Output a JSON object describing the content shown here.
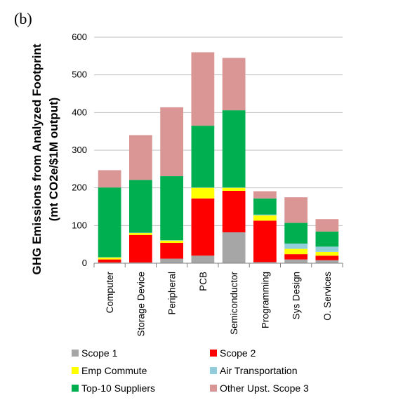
{
  "panel_label": "(b)",
  "chart_data": {
    "type": "bar",
    "stacked": true,
    "ylabel_line1": "GHG Emissions from Analyzed Footprint",
    "ylabel_line2": "(mt CO2e/$1M output)",
    "ylim": [
      0,
      600
    ],
    "yticks": [
      0,
      100,
      200,
      300,
      400,
      500,
      600
    ],
    "ytick_labels": [
      "0",
      "100",
      "200",
      "300",
      "400",
      "500",
      "600"
    ],
    "grid": true,
    "categories": [
      "Computer",
      "Storage Device",
      "Peripheral",
      "PCB",
      "Semiconductor",
      "Programming",
      "Sys Design",
      "O. Services"
    ],
    "series": [
      {
        "name": "Scope 1",
        "color": "#a6a6a6",
        "values": [
          2,
          2,
          12,
          20,
          82,
          3,
          10,
          8
        ]
      },
      {
        "name": "Scope 2",
        "color": "#ff0000",
        "values": [
          8,
          73,
          42,
          152,
          110,
          110,
          14,
          12
        ]
      },
      {
        "name": "Emp Commute",
        "color": "#ffff00",
        "values": [
          5,
          5,
          6,
          28,
          8,
          14,
          14,
          10
        ]
      },
      {
        "name": "Air Transportation",
        "color": "#92cddc",
        "values": [
          1,
          1,
          1,
          1,
          1,
          2,
          14,
          14
        ]
      },
      {
        "name": "Top-10 Suppliers",
        "color": "#00b050",
        "values": [
          185,
          140,
          170,
          164,
          205,
          43,
          55,
          40
        ]
      },
      {
        "name": "Other Upst. Scope 3",
        "color": "#d99694",
        "values": [
          46,
          119,
          183,
          195,
          139,
          19,
          68,
          33
        ]
      }
    ],
    "legend_placement": "bottom"
  }
}
